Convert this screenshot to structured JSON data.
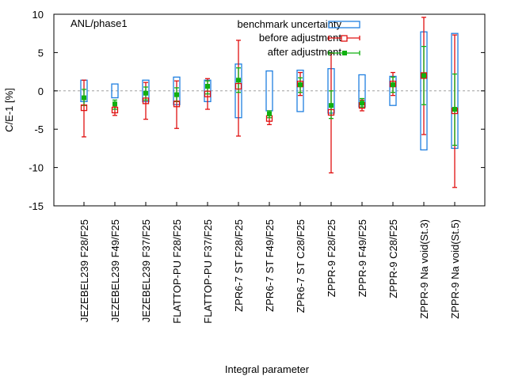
{
  "chart_data": {
    "type": "errorbar",
    "title": "",
    "annotation": "ANL/phase1",
    "xlabel": "Integral parameter",
    "ylabel": "C/E-1 [%]",
    "ylim": [
      -15,
      10
    ],
    "yticks": [
      -15,
      -10,
      -5,
      0,
      5,
      10
    ],
    "ytick_labels": [
      "-15",
      "-10",
      "-5",
      "0",
      "5",
      "10"
    ],
    "zero_line": true,
    "legend_position": "top-right",
    "legend": [
      {
        "key": "benchmark",
        "label": "benchmark uncertainty",
        "color": "#1f7fe0"
      },
      {
        "key": "before",
        "label": "before adjustment",
        "color": "#e01010"
      },
      {
        "key": "after",
        "label": "after adjustment",
        "color": "#10b010"
      }
    ],
    "categories": [
      "JEZEBEL239 F28/F25",
      "JEZEBEL239 F49/F25",
      "JEZEBEL239 F37/F25",
      "FLATTOP-PU F28/F25",
      "FLATTOP-PU F37/F25",
      "ZPR6-7 ST F28/F25",
      "ZPR6-7 ST F49/F25",
      "ZPR6-7 ST C28/F25",
      "ZPPR-9 F28/F25",
      "ZPPR-9 F49/F25",
      "ZPPR-9 C28/F25",
      "ZPPR-9 Na void(St.3)",
      "ZPPR-9 Na void(St.5)"
    ],
    "series": [
      {
        "name": "benchmark uncertainty",
        "key": "benchmark",
        "halfwidth": [
          1.4,
          0.9,
          1.4,
          1.8,
          1.4,
          3.5,
          2.6,
          2.7,
          2.9,
          2.1,
          1.9,
          7.7,
          7.5
        ]
      },
      {
        "name": "before adjustment",
        "key": "before",
        "values": [
          -2.2,
          -2.5,
          -1.3,
          -1.7,
          -0.4,
          0.6,
          -3.6,
          0.9,
          -2.8,
          -1.9,
          0.9,
          2.0,
          -2.6
        ],
        "upper": [
          1.4,
          -2.1,
          1.1,
          1.3,
          1.6,
          6.6,
          -3.0,
          2.4,
          4.9,
          -1.2,
          2.4,
          9.6,
          7.3
        ],
        "lower": [
          -6.0,
          -3.2,
          -3.7,
          -4.9,
          -2.4,
          -5.9,
          -4.4,
          -0.6,
          -10.7,
          -2.6,
          -0.6,
          -5.7,
          -12.6
        ]
      },
      {
        "name": "after adjustment",
        "key": "after",
        "values": [
          -0.9,
          -1.7,
          -0.3,
          -0.5,
          0.6,
          1.4,
          -3.0,
          0.8,
          -1.9,
          -1.6,
          0.8,
          2.0,
          -2.4
        ],
        "upper": [
          0.2,
          -1.2,
          0.5,
          0.4,
          1.3,
          3.0,
          -2.6,
          1.7,
          0.0,
          -1.0,
          1.8,
          5.8,
          2.2
        ],
        "lower": [
          -1.9,
          -2.4,
          -1.2,
          -1.4,
          -0.4,
          -0.2,
          -3.5,
          -0.2,
          -3.6,
          -2.1,
          -0.2,
          -1.8,
          -7.1
        ]
      }
    ]
  }
}
